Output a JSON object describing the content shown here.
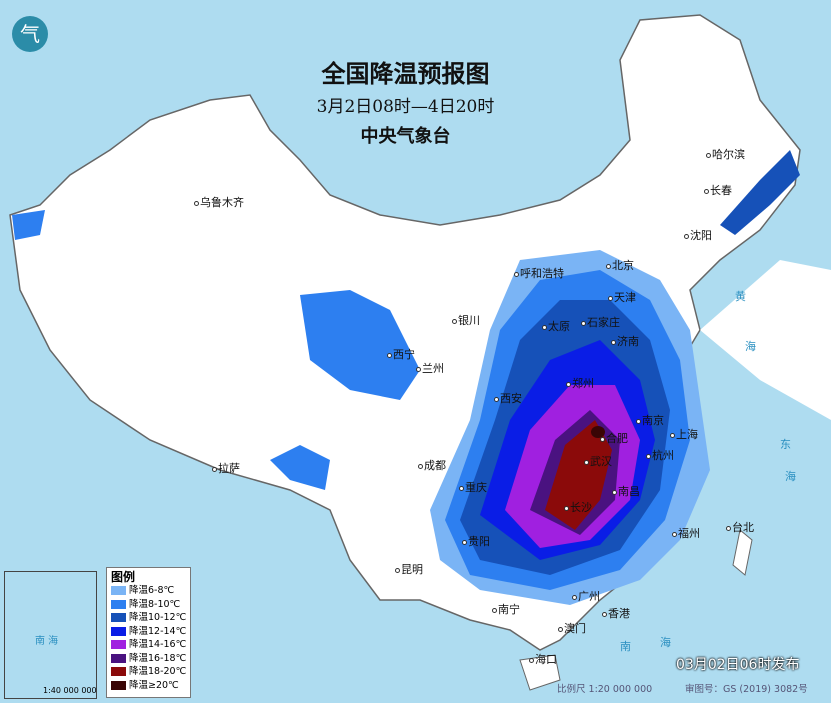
{
  "title": "全国降温预报图",
  "period": "3月2日08时—4日20时",
  "issuer": "中央气象台",
  "logo_text": "气",
  "published": "03月02日06时发布",
  "scale": "比例尺 1:20 000 000",
  "map_number": "审图号：GS (2019) 3082号",
  "legend": {
    "title": "图例",
    "items": [
      {
        "label": "降温6-8℃",
        "color": "#7ab4f5"
      },
      {
        "label": "降温8-10℃",
        "color": "#2d7ff0"
      },
      {
        "label": "降温10-12℃",
        "color": "#1651b8"
      },
      {
        "label": "降温12-14℃",
        "color": "#0a1de6"
      },
      {
        "label": "降温14-16℃",
        "color": "#a020e0"
      },
      {
        "label": "降温16-18℃",
        "color": "#4a1280"
      },
      {
        "label": "降温18-20℃",
        "color": "#8b0a0a"
      },
      {
        "label": "降温≥20℃",
        "color": "#3a0505"
      }
    ]
  },
  "inset": {
    "sea": "南 海",
    "scale": "1:40 000 000"
  },
  "cities": [
    "乌鲁木齐",
    "哈尔滨",
    "长春",
    "沈阳",
    "呼和浩特",
    "北京",
    "天津",
    "石家庄",
    "太原",
    "银川",
    "西宁",
    "兰州",
    "济南",
    "郑州",
    "西安",
    "南京",
    "合肥",
    "上海",
    "武汉",
    "杭州",
    "成都",
    "重庆",
    "南昌",
    "长沙",
    "拉萨",
    "贵阳",
    "福州",
    "台北",
    "昆明",
    "广州",
    "南宁",
    "香港",
    "澳门",
    "海口"
  ],
  "seas": [
    "黄",
    "海",
    "东",
    "海",
    "南",
    "海"
  ]
}
